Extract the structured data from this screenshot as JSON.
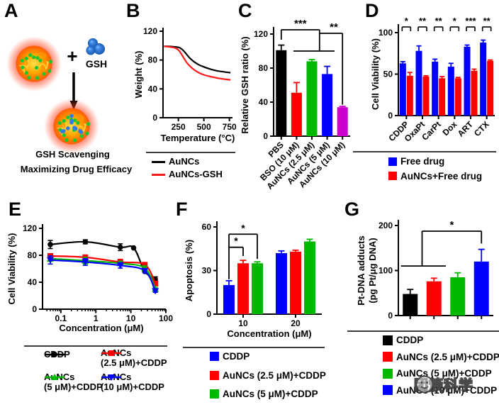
{
  "panels": {
    "A": {
      "label": "A",
      "plus": "+",
      "gsh_label": "GSH",
      "caption1": "GSH Scavenging",
      "caption2": "Maximizing Drug Efficacy"
    },
    "B": {
      "label": "B"
    },
    "C": {
      "label": "C"
    },
    "D": {
      "label": "D"
    },
    "E": {
      "label": "E"
    },
    "F": {
      "label": "F"
    },
    "G": {
      "label": "G"
    }
  },
  "watermark": {
    "text": "团簇科学",
    "icon": "wechat-icon"
  },
  "chart_data": [
    {
      "panel": "B",
      "type": "line",
      "xlabel": "Temperature (°C)",
      "ylabel": "Weight (%)",
      "xlim": [
        100,
        780
      ],
      "ylim": [
        0,
        120
      ],
      "xticks": [
        250,
        500,
        750
      ],
      "yticks": [
        0,
        40,
        80,
        120
      ],
      "legend_position": "bottom",
      "series": [
        {
          "name": "AuNCs",
          "color": "#000000",
          "x": [
            110,
            150,
            200,
            240,
            270,
            300,
            330,
            360,
            400,
            450,
            500,
            550,
            600,
            650,
            700,
            760
          ],
          "y": [
            99,
            99,
            98.5,
            98,
            96.5,
            93,
            88,
            83,
            78,
            73.5,
            70.5,
            68,
            66,
            64.5,
            63.5,
            62.5
          ]
        },
        {
          "name": "AuNCs-GSH",
          "color": "#ff1a1a",
          "x": [
            110,
            150,
            200,
            230,
            260,
            290,
            320,
            350,
            400,
            450,
            500,
            550,
            600,
            650,
            700,
            760
          ],
          "y": [
            99,
            98.5,
            97.5,
            96,
            92.5,
            86,
            79,
            73.5,
            67,
            62.5,
            59.5,
            57.5,
            56,
            54.5,
            53.5,
            52.5
          ]
        }
      ]
    },
    {
      "panel": "C",
      "type": "bar",
      "ylabel": "Relative GSH ratio (%)",
      "categories": [
        "PBS",
        "BSO (10 μM)",
        "AuNCs (2.5 μM)",
        "AuNCs (5 μM)",
        "AuNCs (10 μM)"
      ],
      "values": [
        101,
        51,
        88,
        73,
        34
      ],
      "errors": [
        6,
        12,
        2,
        9,
        1
      ],
      "colors": [
        "#000000",
        "#ff0000",
        "#00b800",
        "#0000ff",
        "#cc00cc"
      ],
      "ylim": [
        0,
        120
      ],
      "yticks": [
        0,
        40,
        80,
        120
      ],
      "significance": [
        {
          "label": "***"
        },
        {
          "label": "**"
        }
      ]
    },
    {
      "panel": "D",
      "type": "bar",
      "ylabel": "Cell Viability (%)",
      "categories": [
        "CDDP",
        "OxaPt",
        "CarPt",
        "Dox",
        "ART",
        "CTX"
      ],
      "series": [
        {
          "name": "Free drug",
          "color": "#0000ff",
          "values": [
            63,
            78,
            65,
            59,
            83,
            88
          ],
          "errors": [
            2,
            6,
            3,
            4,
            2,
            3
          ]
        },
        {
          "name": "AuNCs+Free drug",
          "color": "#ff0000",
          "values": [
            48,
            47,
            45,
            45,
            54,
            66
          ],
          "errors": [
            4,
            1,
            2,
            1,
            2,
            1
          ]
        }
      ],
      "ylim": [
        0,
        100
      ],
      "yticks": [
        0,
        50,
        100
      ],
      "significance": [
        {
          "label": "*"
        },
        {
          "label": "**"
        },
        {
          "label": "**"
        },
        {
          "label": "*"
        },
        {
          "label": "***"
        },
        {
          "label": "**"
        }
      ]
    },
    {
      "panel": "E",
      "type": "line",
      "xscale": "log",
      "xlabel": "Concentration (μM)",
      "ylabel": "Cell Viability (%)",
      "xlim": [
        0.03,
        100
      ],
      "ylim": [
        0,
        120
      ],
      "xticks": [
        0.1,
        1,
        10,
        100
      ],
      "yticks": [
        0,
        40,
        80,
        120
      ],
      "series": [
        {
          "name": "CDDP",
          "color": "#000000",
          "marker": "circle",
          "x": [
            0.05,
            0.5,
            5,
            12,
            25,
            50
          ],
          "y": [
            96,
            100,
            92,
            91,
            56,
            44
          ],
          "err": [
            6,
            3,
            5,
            0,
            0,
            4
          ]
        },
        {
          "name": "AuNCs (2.5 μM)+CDDP",
          "color": "#ff0000",
          "marker": "square",
          "x": [
            0.05,
            0.5,
            5,
            25,
            50
          ],
          "y": [
            79,
            77,
            70,
            66,
            38
          ],
          "err": [
            3,
            2,
            4,
            3,
            2
          ]
        },
        {
          "name": "AuNCs (5 μM)+CDDP",
          "color": "#00b800",
          "marker": "triangle",
          "x": [
            0.05,
            0.5,
            5,
            25,
            50
          ],
          "y": [
            75,
            72,
            68,
            61,
            30
          ],
          "err": [
            4,
            5,
            3,
            3,
            2
          ]
        },
        {
          "name": "AuNCs (10 μM)+CDDP",
          "color": "#0000ff",
          "marker": "triangle-down",
          "x": [
            0.05,
            0.5,
            5,
            25,
            50
          ],
          "y": [
            73,
            70,
            65,
            57,
            27
          ],
          "err": [
            6,
            5,
            4,
            3,
            2
          ]
        }
      ]
    },
    {
      "panel": "F",
      "type": "bar",
      "xlabel": "Concentration (μM)",
      "ylabel": "Apoptosis (%)",
      "categories": [
        "10",
        "20"
      ],
      "series": [
        {
          "name": "CDDP",
          "color": "#0000ff",
          "values": [
            20,
            42
          ],
          "errors": [
            3,
            1.5
          ]
        },
        {
          "name": "AuNCs (2.5 μM)+CDDP",
          "color": "#ff0000",
          "values": [
            35,
            43
          ],
          "errors": [
            2,
            1
          ]
        },
        {
          "name": "AuNCs (5 μM)+CDDP",
          "color": "#00b800",
          "values": [
            35,
            50
          ],
          "errors": [
            1,
            1.5
          ]
        }
      ],
      "ylim": [
        0,
        60
      ],
      "yticks": [
        0,
        30,
        60
      ],
      "significance": [
        {
          "label": "*"
        },
        {
          "label": "*"
        }
      ]
    },
    {
      "panel": "G",
      "type": "bar",
      "ylabel": "Pt-DNA adducts",
      "ylabel2": "(pg Pt/μg DNA)",
      "categories": [
        "CDDP",
        "AuNCs (2.5 μM)+CDDP",
        "AuNCs (5 μM)+CDDP",
        "AuNCs (10 μM)+CDDP"
      ],
      "values": [
        48,
        76,
        85,
        120
      ],
      "errors": [
        10,
        7,
        10,
        27
      ],
      "colors": [
        "#000000",
        "#ff0000",
        "#00b800",
        "#0000ff"
      ],
      "ylim": [
        0,
        200
      ],
      "yticks": [
        0,
        100,
        200
      ],
      "significance": [
        {
          "label": "*"
        }
      ]
    }
  ]
}
